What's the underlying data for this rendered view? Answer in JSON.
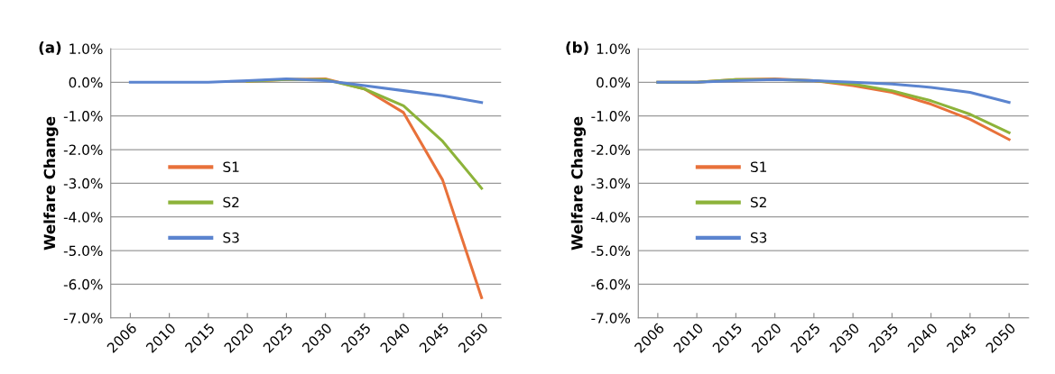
{
  "chart_data": [
    {
      "type": "line",
      "title": "(a)",
      "ylabel": "Welfare Change",
      "categories": [
        "2006",
        "2010",
        "2015",
        "2020",
        "2025",
        "2030",
        "2035",
        "2040",
        "2045",
        "2050"
      ],
      "ylim": [
        -7.0,
        1.0
      ],
      "yticks": [
        {
          "value": 1.0,
          "label": "1.0%"
        },
        {
          "value": 0.0,
          "label": "0.0%"
        },
        {
          "value": -1.0,
          "label": "-1.0%"
        },
        {
          "value": -2.0,
          "label": "-2.0%"
        },
        {
          "value": -3.0,
          "label": "-3.0%"
        },
        {
          "value": -4.0,
          "label": "-4.0%"
        },
        {
          "value": -5.0,
          "label": "-5.0%"
        },
        {
          "value": -6.0,
          "label": "-6.0%"
        },
        {
          "value": -7.0,
          "label": "-7.0%"
        }
      ],
      "grid": "y",
      "legend": "left",
      "marker": "none",
      "series": [
        {
          "name": "S1",
          "color": "#e8713a",
          "values": [
            null,
            null,
            null,
            0.03,
            0.08,
            0.1,
            -0.2,
            -0.9,
            -2.9,
            -6.4
          ]
        },
        {
          "name": "S2",
          "color": "#8db33a",
          "values": [
            null,
            null,
            null,
            0.03,
            0.08,
            0.08,
            -0.2,
            -0.7,
            -1.75,
            -3.15
          ]
        },
        {
          "name": "S3",
          "color": "#5b84cf",
          "values": [
            0.0,
            0.0,
            0.0,
            0.05,
            0.1,
            0.05,
            -0.1,
            -0.25,
            -0.4,
            -0.6
          ]
        }
      ]
    },
    {
      "type": "line",
      "title": "(b)",
      "ylabel": "Welfare Change",
      "categories": [
        "2006",
        "2010",
        "2015",
        "2020",
        "2025",
        "2030",
        "2035",
        "2040",
        "2045",
        "2050"
      ],
      "ylim": [
        -7.0,
        1.0
      ],
      "yticks": [
        {
          "value": 1.0,
          "label": "1.0%"
        },
        {
          "value": 0.0,
          "label": "0.0%"
        },
        {
          "value": -1.0,
          "label": "-1.0%"
        },
        {
          "value": -2.0,
          "label": "-2.0%"
        },
        {
          "value": -3.0,
          "label": "-3.0%"
        },
        {
          "value": -4.0,
          "label": "-4.0%"
        },
        {
          "value": -5.0,
          "label": "-5.0%"
        },
        {
          "value": -6.0,
          "label": "-6.0%"
        },
        {
          "value": -7.0,
          "label": "-7.0%"
        }
      ],
      "grid": "y",
      "legend": "left",
      "marker": "none",
      "series": [
        {
          "name": "S1",
          "color": "#e8713a",
          "values": [
            0.0,
            0.0,
            0.08,
            0.1,
            0.05,
            -0.1,
            -0.3,
            -0.65,
            -1.1,
            -1.7
          ]
        },
        {
          "name": "S2",
          "color": "#8db33a",
          "values": [
            0.0,
            0.0,
            0.08,
            0.08,
            0.05,
            -0.05,
            -0.25,
            -0.55,
            -0.95,
            -1.5
          ]
        },
        {
          "name": "S3",
          "color": "#5b84cf",
          "values": [
            0.0,
            0.0,
            0.05,
            0.08,
            0.05,
            0.0,
            -0.05,
            -0.15,
            -0.3,
            -0.6
          ]
        }
      ]
    }
  ]
}
